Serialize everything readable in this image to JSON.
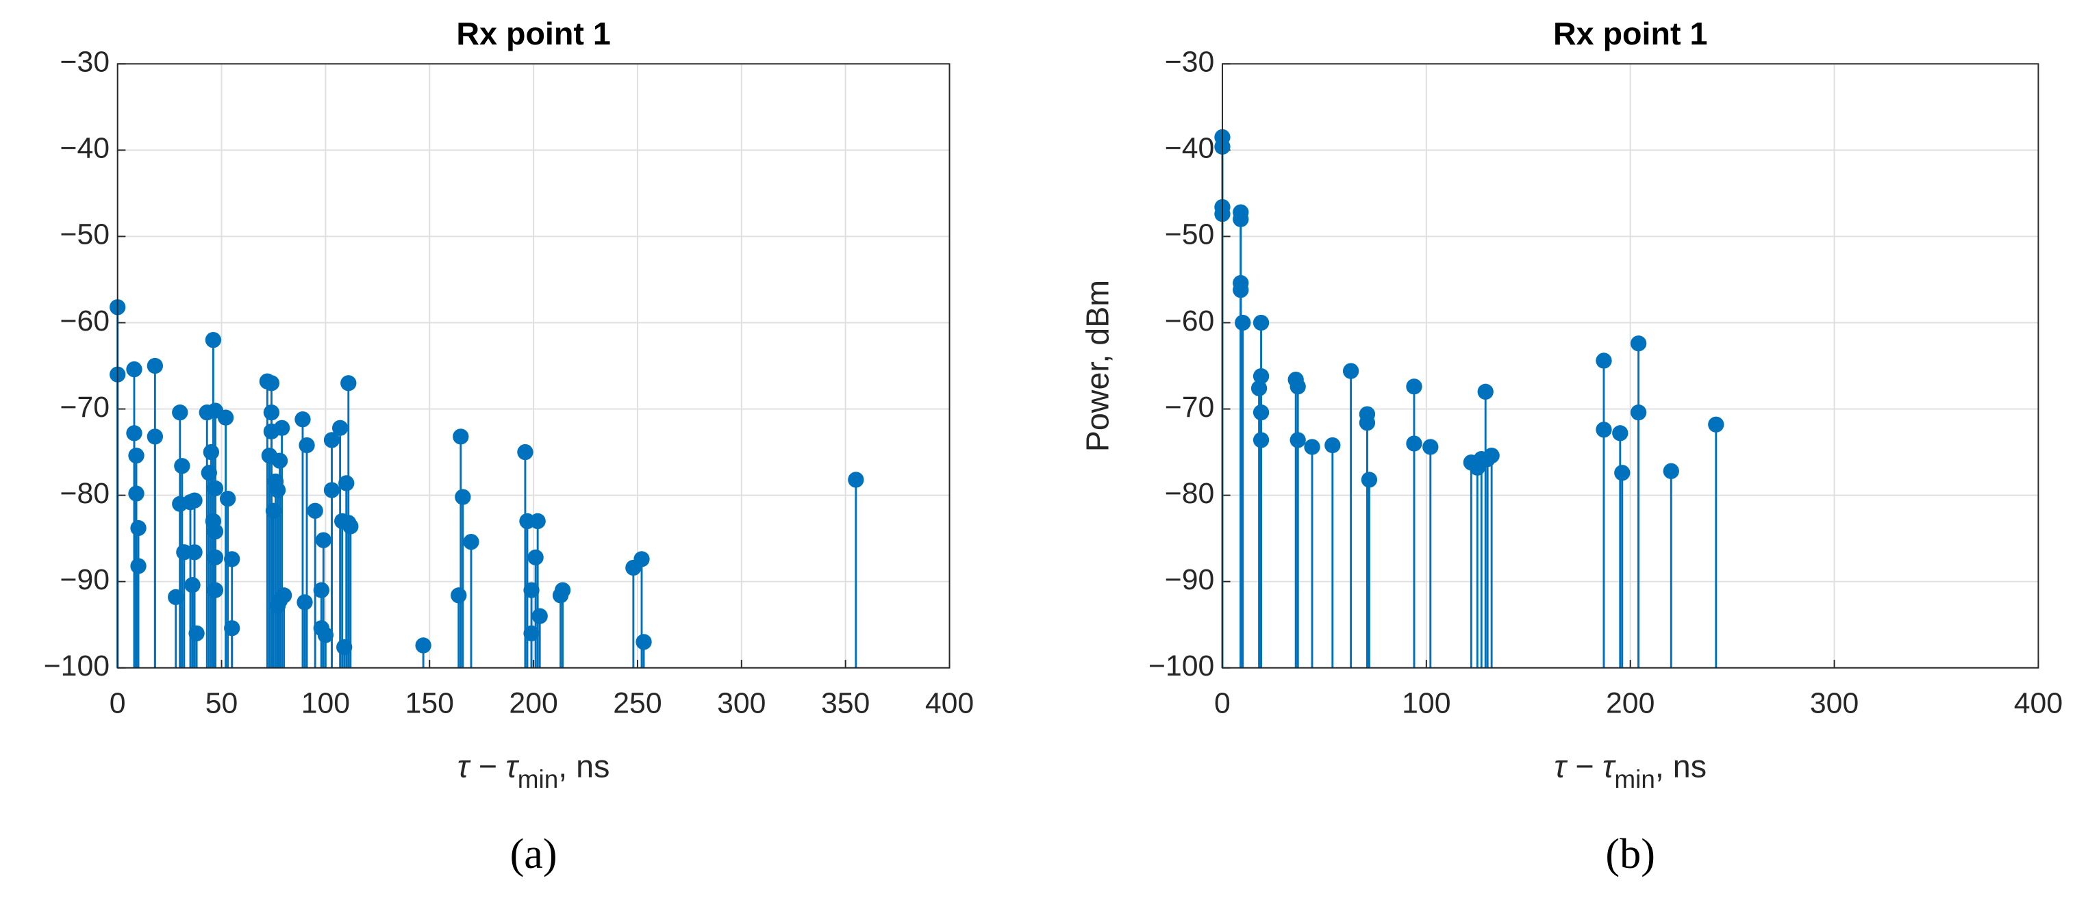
{
  "chart_data": [
    {
      "type": "stem",
      "title": "Rx point 1",
      "caption": "(a)",
      "color": "#0072bd",
      "grid": true,
      "xlabel_parts": [
        "τ − τ",
        "min",
        ", ns"
      ],
      "xlim": [
        0,
        400
      ],
      "xticks": [
        0,
        50,
        100,
        150,
        200,
        250,
        300,
        350,
        400
      ],
      "ylim": [
        -100,
        -30
      ],
      "yticks": [
        {
          "value": -30,
          "label": "−30"
        },
        {
          "value": -40,
          "label": "−40"
        },
        {
          "value": -50,
          "label": "−50"
        },
        {
          "value": -60,
          "label": "−60"
        },
        {
          "value": -70,
          "label": "−70"
        },
        {
          "value": -80,
          "label": "−80"
        },
        {
          "value": -90,
          "label": "−90"
        },
        {
          "value": -100,
          "label": "−100"
        }
      ],
      "x": [
        0,
        0,
        8,
        8,
        9,
        9,
        10,
        10,
        18,
        18,
        28,
        30,
        30,
        31,
        32,
        35,
        36,
        37,
        37,
        38,
        43,
        44,
        45,
        46,
        46,
        47,
        47,
        47,
        47,
        47,
        52,
        53,
        55,
        55,
        72,
        73,
        74,
        74,
        74,
        75,
        76,
        77,
        77,
        78,
        78,
        79,
        80,
        89,
        90,
        91,
        95,
        98,
        98,
        99,
        100,
        103,
        103,
        107,
        108,
        109,
        110,
        111,
        111,
        112,
        147,
        164,
        165,
        166,
        170,
        196,
        197,
        199,
        199,
        201,
        202,
        203,
        213,
        214,
        248,
        252,
        253,
        355
      ],
      "values": [
        -58.2,
        -66,
        -65.4,
        -72.8,
        -75.4,
        -79.8,
        -83.8,
        -88.2,
        -65,
        -73.2,
        -91.8,
        -70.4,
        -81,
        -76.6,
        -86.6,
        -80.8,
        -90.4,
        -80.6,
        -86.6,
        -96,
        -70.4,
        -77.4,
        -75,
        -83,
        -62,
        -70.2,
        -84.2,
        -87.2,
        -91,
        -79.2,
        -71,
        -80.4,
        -87.4,
        -95.4,
        -66.8,
        -75.4,
        -67,
        -70.4,
        -72.6,
        -81.8,
        -78.4,
        -79.4,
        -92.8,
        -76,
        -92.2,
        -72.2,
        -91.6,
        -71.2,
        -92.4,
        -74.2,
        -81.8,
        -91,
        -95.4,
        -85.2,
        -96.2,
        -73.6,
        -79.4,
        -72.2,
        -83,
        -97.6,
        -78.6,
        -67,
        -83.2,
        -83.6,
        -97.4,
        -91.6,
        -73.2,
        -80.2,
        -85.4,
        -75,
        -83,
        -91,
        -96,
        -87.2,
        -83,
        -94,
        -91.6,
        -91,
        -88.4,
        -87.4,
        -97,
        -78.2
      ]
    },
    {
      "type": "stem",
      "title": "Rx point 1",
      "caption": "(b)",
      "color": "#0072bd",
      "grid": true,
      "ylabel": "Power, dBm",
      "xlabel_parts": [
        "τ − τ",
        "min",
        ", ns"
      ],
      "xlim": [
        0,
        400
      ],
      "xticks": [
        0,
        100,
        200,
        300,
        400
      ],
      "ylim": [
        -100,
        -30
      ],
      "yticks": [
        {
          "value": -30,
          "label": "−30"
        },
        {
          "value": -40,
          "label": "−40"
        },
        {
          "value": -50,
          "label": "−50"
        },
        {
          "value": -60,
          "label": "−60"
        },
        {
          "value": -70,
          "label": "−70"
        },
        {
          "value": -80,
          "label": "−80"
        },
        {
          "value": -90,
          "label": "−90"
        },
        {
          "value": -100,
          "label": "−100"
        }
      ],
      "x": [
        0,
        0,
        0,
        0,
        9,
        9,
        9,
        9,
        10,
        19,
        18,
        19,
        19,
        19,
        36,
        37,
        37,
        44,
        54,
        63,
        71,
        71,
        72,
        94,
        94,
        102,
        122,
        125,
        127,
        129,
        130,
        132,
        187,
        187,
        195,
        196,
        204,
        204,
        220,
        242
      ],
      "values": [
        -38.5,
        -39.6,
        -46.6,
        -47.4,
        -47.2,
        -48,
        -55.4,
        -56.2,
        -60,
        -60,
        -67.6,
        -66.2,
        -70.4,
        -73.6,
        -66.6,
        -67.4,
        -73.6,
        -74.4,
        -74.2,
        -65.6,
        -70.6,
        -71.6,
        -78.2,
        -67.4,
        -74,
        -74.4,
        -76.2,
        -76.8,
        -75.8,
        -68,
        -75.8,
        -75.4,
        -64.4,
        -72.4,
        -72.8,
        -77.4,
        -62.4,
        -70.4,
        -77.2,
        -71.8
      ]
    }
  ]
}
